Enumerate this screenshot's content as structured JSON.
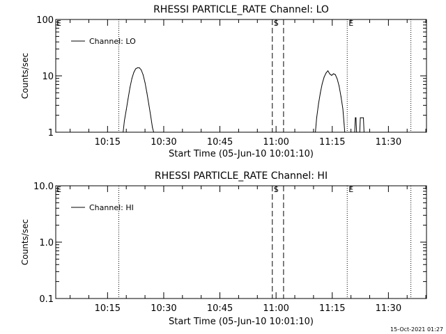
{
  "footer_timestamp": "15-Oct-2021 01:27",
  "colors": {
    "background": "#ffffff",
    "foreground": "#000000"
  },
  "chart_data": [
    {
      "type": "line",
      "title": "RHESSI PARTICLE_RATE Channel: LO",
      "xlabel": "Start Time (05-Jun-10 10:01:10)",
      "ylabel": "Counts/sec",
      "yscale": "log",
      "ylim": [
        1,
        100
      ],
      "yticks": [
        1,
        10,
        100
      ],
      "ytick_labels": [
        "1",
        "10",
        "100"
      ],
      "xlim": [
        "10:01:10",
        "11:40:10"
      ],
      "xticks": [
        "10:15",
        "10:30",
        "10:45",
        "11:00",
        "11:15",
        "11:30"
      ],
      "grid": false,
      "legend": {
        "position": "top-left",
        "entries": [
          "Channel: LO"
        ]
      },
      "markers": [
        {
          "time": "10:18",
          "style": "dotted",
          "label": ""
        },
        {
          "time": "10:59",
          "style": "dashed",
          "label": "S"
        },
        {
          "time": "11:02",
          "style": "dashed",
          "label": ""
        },
        {
          "time": "11:19",
          "style": "dotted",
          "label": "E"
        },
        {
          "time": "11:36",
          "style": "dotted",
          "label": ""
        }
      ],
      "corner_label": "E",
      "series": [
        {
          "name": "Channel: LO",
          "segments": [
            [
              [
                "10:19:10",
                1
              ],
              [
                "10:19:30",
                1.6
              ],
              [
                "10:20:00",
                2.5
              ],
              [
                "10:20:30",
                4
              ],
              [
                "10:21:00",
                6.3
              ],
              [
                "10:21:30",
                9
              ],
              [
                "10:22:00",
                11.5
              ],
              [
                "10:22:30",
                13.3
              ],
              [
                "10:23:00",
                13.9
              ],
              [
                "10:23:30",
                13.9
              ],
              [
                "10:24:00",
                12.7
              ],
              [
                "10:24:30",
                10.4
              ],
              [
                "10:25:00",
                7.6
              ],
              [
                "10:25:30",
                5
              ],
              [
                "10:26:00",
                3.2
              ],
              [
                "10:26:30",
                2
              ],
              [
                "10:27:00",
                1.2
              ],
              [
                "10:27:20",
                1
              ]
            ],
            [
              [
                "11:10:30",
                1
              ],
              [
                "11:10:50",
                1.8
              ],
              [
                "11:11:20",
                3.2
              ],
              [
                "11:11:50",
                5
              ],
              [
                "11:12:20",
                7.3
              ],
              [
                "11:12:50",
                9.5
              ],
              [
                "11:13:20",
                11.2
              ],
              [
                "11:13:50",
                12.3
              ],
              [
                "11:14:20",
                10.8
              ],
              [
                "11:14:50",
                10.2
              ],
              [
                "11:15:20",
                10.9
              ],
              [
                "11:15:50",
                10.5
              ],
              [
                "11:16:20",
                8.8
              ],
              [
                "11:16:50",
                6.6
              ],
              [
                "11:17:20",
                4.3
              ],
              [
                "11:17:50",
                2.6
              ],
              [
                "11:18:10",
                1.4
              ],
              [
                "11:18:20",
                1
              ]
            ],
            [
              [
                "11:21:00",
                1
              ],
              [
                "11:21:10",
                1.8
              ],
              [
                "11:21:20",
                1.8
              ],
              [
                "11:21:30",
                1
              ]
            ],
            [
              [
                "11:22:20",
                1
              ],
              [
                "11:22:30",
                1.8
              ],
              [
                "11:23:20",
                1.8
              ],
              [
                "11:23:30",
                1
              ]
            ]
          ]
        }
      ]
    },
    {
      "type": "line",
      "title": "RHESSI PARTICLE_RATE Channel: HI",
      "xlabel": "Start Time (05-Jun-10 10:01:10)",
      "ylabel": "Counts/sec",
      "yscale": "log",
      "ylim": [
        0.1,
        10
      ],
      "yticks": [
        0.1,
        1,
        10
      ],
      "ytick_labels": [
        "0.1",
        "1.0",
        "10.0"
      ],
      "xlim": [
        "10:01:10",
        "11:40:10"
      ],
      "xticks": [
        "10:15",
        "10:30",
        "10:45",
        "11:00",
        "11:15",
        "11:30"
      ],
      "grid": false,
      "legend": {
        "position": "top-left",
        "entries": [
          "Channel: HI"
        ]
      },
      "markers": [
        {
          "time": "10:18",
          "style": "dotted",
          "label": ""
        },
        {
          "time": "10:59",
          "style": "dashed",
          "label": "S"
        },
        {
          "time": "11:02",
          "style": "dashed",
          "label": ""
        },
        {
          "time": "11:19",
          "style": "dotted",
          "label": "E"
        },
        {
          "time": "11:36",
          "style": "dotted",
          "label": ""
        }
      ],
      "corner_label": "E",
      "series": [
        {
          "name": "Channel: HI",
          "segments": []
        }
      ]
    }
  ]
}
